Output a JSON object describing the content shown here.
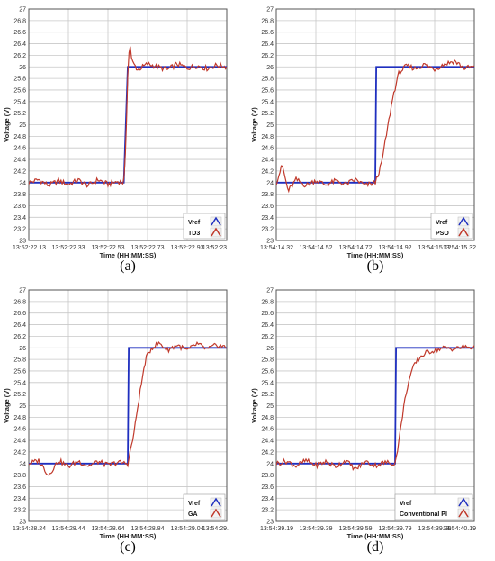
{
  "figure": {
    "panels": [
      {
        "caption": "(a)",
        "legend": [
          "Vref",
          "TD3"
        ]
      },
      {
        "caption": "(b)",
        "legend": [
          "Vref",
          "PSO"
        ]
      },
      {
        "caption": "(c)",
        "legend": [
          "Vref",
          "GA"
        ]
      },
      {
        "caption": "(d)",
        "legend": [
          "Vref",
          "Conventional PI"
        ]
      }
    ]
  },
  "chart_data": [
    {
      "type": "line",
      "xlabel": "Time (HH:MM:SS)",
      "ylabel": "Voltage (V)",
      "x_tick_labels": [
        "13:52:22.13",
        "13:52:22.33",
        "13:52:22.53",
        "13:52:22.73",
        "13:52:22.93",
        "13:52:23."
      ],
      "y_ticks": [
        23,
        23.2,
        23.4,
        23.6,
        23.8,
        24,
        24.2,
        24.4,
        24.6,
        24.8,
        25,
        25.2,
        25.4,
        25.6,
        25.8,
        26,
        26.2,
        26.4,
        26.6,
        26.8,
        27
      ],
      "ylim": [
        23,
        27
      ],
      "grid": true,
      "legend_position": "bottom-right",
      "series": [
        {
          "name": "Vref",
          "color": "#1f2fbf",
          "x": [
            0,
            0.48,
            0.5,
            1.0
          ],
          "y": [
            24,
            24,
            26,
            26
          ]
        },
        {
          "name": "TD3",
          "color": "#c0392b",
          "x": [
            0,
            0.05,
            0.1,
            0.15,
            0.2,
            0.25,
            0.3,
            0.35,
            0.4,
            0.45,
            0.48,
            0.49,
            0.5,
            0.51,
            0.52,
            0.55,
            0.6,
            0.65,
            0.7,
            0.75,
            0.8,
            0.85,
            0.9,
            0.95,
            1.0
          ],
          "y": [
            24.0,
            24.05,
            23.95,
            24.03,
            23.97,
            24.04,
            23.95,
            24.05,
            23.97,
            24.02,
            24.0,
            24.6,
            25.9,
            26.45,
            26.1,
            25.95,
            26.05,
            26.0,
            25.95,
            26.05,
            25.98,
            26.02,
            25.97,
            26.03,
            26.0
          ]
        }
      ]
    },
    {
      "type": "line",
      "xlabel": "Time (HH:MM:SS)",
      "ylabel": "Voltage (V)",
      "x_tick_labels": [
        "13:54:14.32",
        "13:54:14.52",
        "13:54:14.72",
        "13:54:14.92",
        "13:54:15.12",
        "13:54:15.32"
      ],
      "y_ticks": [
        23,
        23.2,
        23.4,
        23.6,
        23.8,
        24,
        24.2,
        24.4,
        24.6,
        24.8,
        25,
        25.2,
        25.4,
        25.6,
        25.8,
        26,
        26.2,
        26.4,
        26.6,
        26.8,
        27
      ],
      "ylim": [
        23,
        27
      ],
      "grid": true,
      "legend_position": "bottom-right",
      "series": [
        {
          "name": "Vref",
          "color": "#1f2fbf",
          "x": [
            0,
            0.5,
            0.505,
            1.0
          ],
          "y": [
            24,
            24,
            26,
            26
          ]
        },
        {
          "name": "PSO",
          "color": "#c0392b",
          "x": [
            0,
            0.03,
            0.06,
            0.1,
            0.15,
            0.2,
            0.25,
            0.3,
            0.35,
            0.4,
            0.45,
            0.5,
            0.53,
            0.56,
            0.59,
            0.62,
            0.66,
            0.7,
            0.75,
            0.8,
            0.85,
            0.9,
            0.95,
            1.0
          ],
          "y": [
            24.0,
            24.3,
            23.85,
            24.05,
            23.95,
            24.04,
            23.96,
            24.03,
            23.97,
            24.05,
            23.95,
            24.0,
            24.3,
            24.9,
            25.5,
            25.9,
            26.02,
            25.97,
            26.04,
            25.96,
            26.05,
            26.1,
            25.98,
            26.0
          ]
        }
      ]
    },
    {
      "type": "line",
      "xlabel": "Time (HH:MM:SS)",
      "ylabel": "Voltage (V)",
      "x_tick_labels": [
        "13:54:28.24",
        "13:54:28.44",
        "13:54:28.64",
        "13:54:28.84",
        "13:54:29.04",
        "13:54:29."
      ],
      "y_ticks": [
        23,
        23.2,
        23.4,
        23.6,
        23.8,
        24,
        24.2,
        24.4,
        24.6,
        24.8,
        25,
        25.2,
        25.4,
        25.6,
        25.8,
        26,
        26.2,
        26.4,
        26.6,
        26.8,
        27
      ],
      "ylim": [
        23,
        27
      ],
      "grid": true,
      "legend_position": "bottom-right",
      "series": [
        {
          "name": "Vref",
          "color": "#1f2fbf",
          "x": [
            0,
            0.5,
            0.505,
            1.0
          ],
          "y": [
            24,
            24,
            26,
            26
          ]
        },
        {
          "name": "GA",
          "color": "#c0392b",
          "x": [
            0,
            0.05,
            0.1,
            0.15,
            0.2,
            0.25,
            0.3,
            0.35,
            0.4,
            0.45,
            0.5,
            0.53,
            0.56,
            0.59,
            0.62,
            0.66,
            0.7,
            0.75,
            0.8,
            0.85,
            0.9,
            0.95,
            1.0
          ],
          "y": [
            24.0,
            24.05,
            23.8,
            24.05,
            23.95,
            24.04,
            23.96,
            24.03,
            23.97,
            24.02,
            24.0,
            24.5,
            25.2,
            25.8,
            26.0,
            26.08,
            25.96,
            26.05,
            25.95,
            26.07,
            25.97,
            26.05,
            26.0
          ]
        }
      ]
    },
    {
      "type": "line",
      "xlabel": "Time (HH:MM:SS)",
      "ylabel": "Voltage (V)",
      "x_tick_labels": [
        "13:54:39.19",
        "13:54:39.39",
        "13:54:39.59",
        "13:54:39.79",
        "13:54:39.99",
        "13:54:40.19"
      ],
      "y_ticks": [
        23,
        23.2,
        23.4,
        23.6,
        23.8,
        24,
        24.2,
        24.4,
        24.6,
        24.8,
        25,
        25.2,
        25.4,
        25.6,
        25.8,
        26,
        26.2,
        26.4,
        26.6,
        26.8,
        27
      ],
      "ylim": [
        23,
        27
      ],
      "grid": true,
      "legend_position": "bottom-right",
      "series": [
        {
          "name": "Vref",
          "color": "#1f2fbf",
          "x": [
            0,
            0.6,
            0.605,
            1.0
          ],
          "y": [
            24,
            24,
            26,
            26
          ]
        },
        {
          "name": "Conventional PI",
          "color": "#c0392b",
          "x": [
            0,
            0.05,
            0.1,
            0.15,
            0.2,
            0.25,
            0.3,
            0.35,
            0.4,
            0.45,
            0.5,
            0.55,
            0.6,
            0.62,
            0.64,
            0.66,
            0.68,
            0.7,
            0.73,
            0.76,
            0.8,
            0.85,
            0.9,
            0.95,
            1.0
          ],
          "y": [
            24.0,
            24.04,
            23.96,
            24.05,
            23.97,
            24.03,
            23.95,
            24.05,
            23.9,
            24.03,
            23.97,
            24.02,
            24.0,
            24.4,
            24.9,
            25.3,
            25.55,
            25.72,
            25.85,
            25.92,
            25.96,
            26.0,
            25.98,
            26.02,
            26.0
          ]
        }
      ]
    }
  ]
}
